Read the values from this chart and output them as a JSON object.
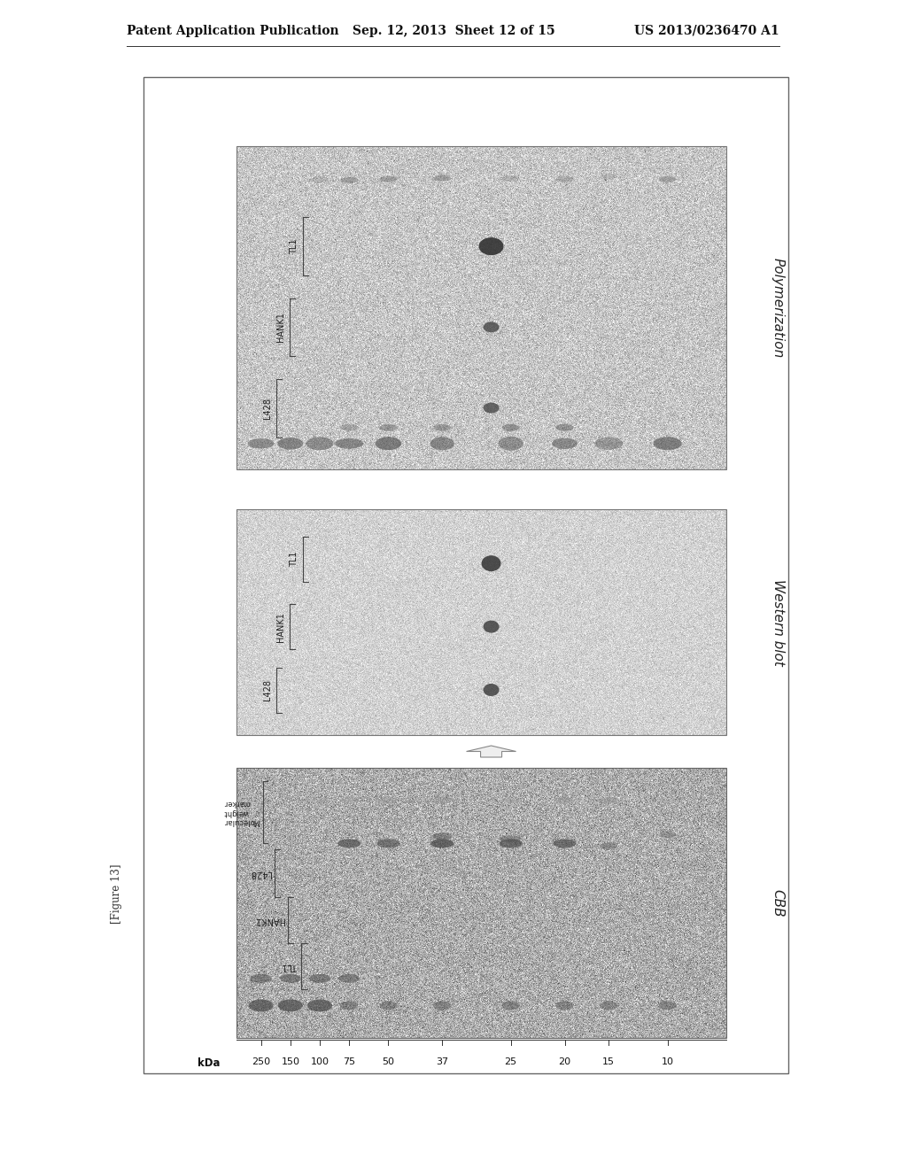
{
  "page_header": {
    "left": "Patent Application Publication",
    "center": "Sep. 12, 2013  Sheet 12 of 15",
    "right": "US 2013/0236470 A1"
  },
  "figure_label": "[Figure 13]",
  "panel_labels": {
    "CBB": "CBB",
    "western": "Western blot",
    "poly": "Polymerization"
  },
  "cell_lines": [
    "L428",
    "HANK1",
    "TL1"
  ],
  "mw_markers": [
    "250",
    "150",
    "100",
    "75",
    "50",
    "37",
    "25",
    "20",
    "15",
    "10"
  ],
  "mw_label": "kDa",
  "bg_color": "#ffffff",
  "outer_box_edge": "#777777"
}
